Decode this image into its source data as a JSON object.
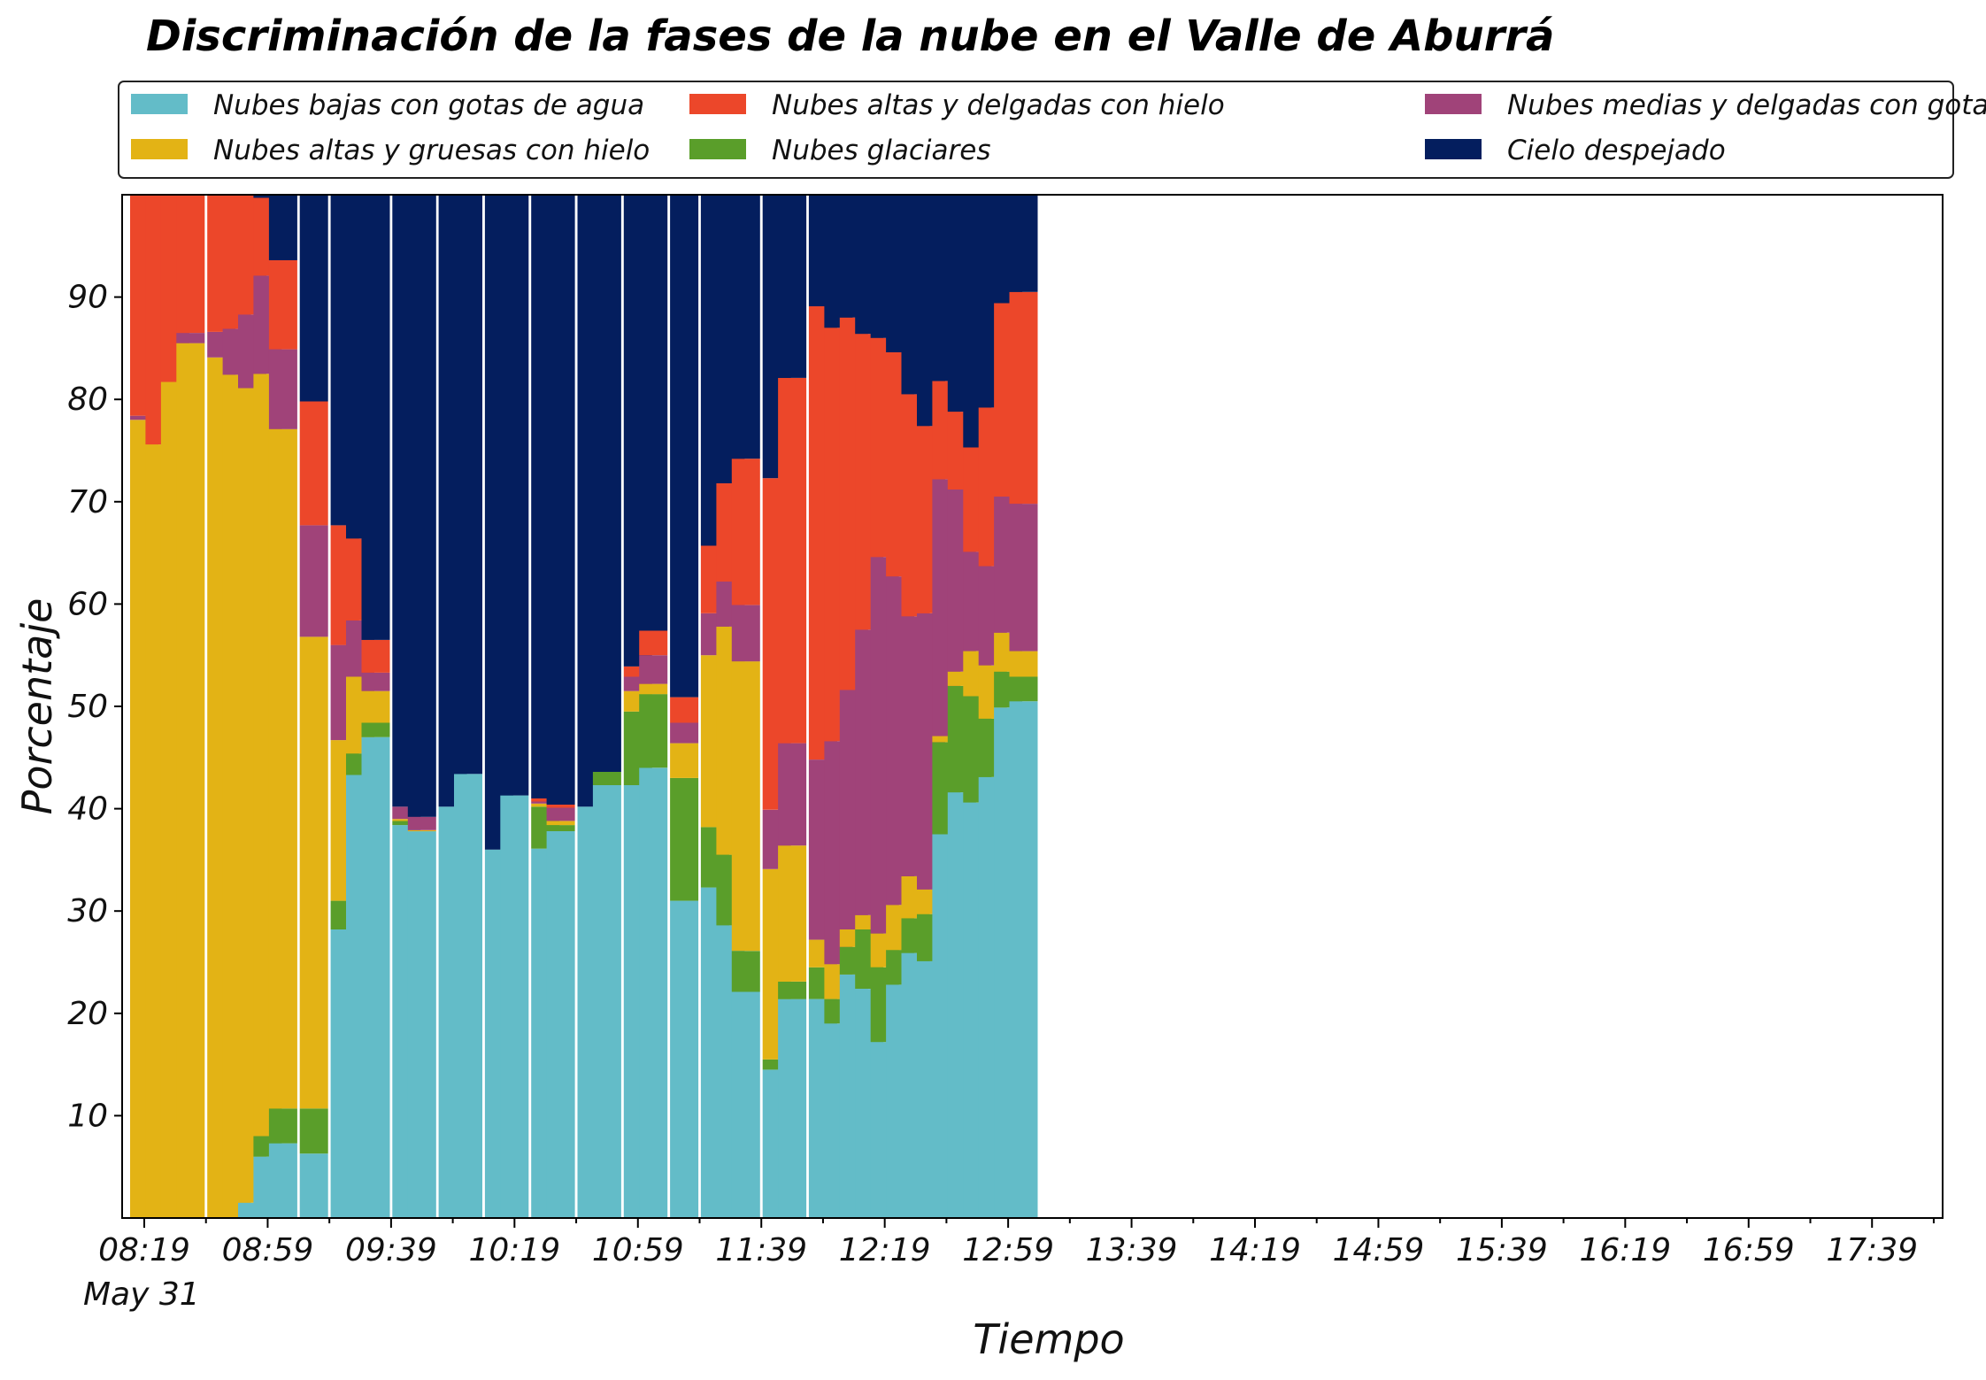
{
  "chart_data": {
    "type": "bar",
    "stacked": true,
    "title": "Discriminación de la fases de la nube en el Valle de Aburrá",
    "xlabel": "Tiempo",
    "ylabel": "Porcentaje",
    "ylim": [
      0,
      100
    ],
    "yticks": [
      10,
      20,
      30,
      40,
      50,
      60,
      70,
      80,
      90
    ],
    "xticks": [
      "08:19",
      "08:59",
      "09:39",
      "10:19",
      "10:59",
      "11:39",
      "12:19",
      "12:59",
      "13:39",
      "14:19",
      "14:59",
      "15:39",
      "16:19",
      "16:59",
      "17:39"
    ],
    "xtick_date": "May 31",
    "grid": false,
    "legend_position": "top",
    "legend_columns": 3,
    "series_order": [
      "Nubes bajas con gotas de agua",
      "Nubes glaciares",
      "Nubes altas y gruesas con hielo",
      "Nubes medias y delgadas con gotas de agua",
      "Nubes altas y delgadas con hielo",
      "Cielo despejado"
    ],
    "colors": [
      "#63bcc8",
      "#5a9e2a",
      "#e3b315",
      "#a04379",
      "#ec472a",
      "#041e5e"
    ],
    "legend_entries": [
      {
        "label": "Nubes bajas con gotas de agua",
        "color": "#63bcc8"
      },
      {
        "label": "Nubes altas y gruesas con hielo",
        "color": "#e3b315"
      },
      {
        "label": "Nubes altas y delgadas con hielo",
        "color": "#ec472a"
      },
      {
        "label": "Nubes glaciares",
        "color": "#5a9e2a"
      },
      {
        "label": "Nubes medias y delgadas con gotas de agua",
        "color": "#a04379"
      },
      {
        "label": "Cielo despejado",
        "color": "#041e5e"
      }
    ],
    "bars": [
      {
        "time": "08:19",
        "values": [
          0,
          0,
          78,
          0.4,
          21.6,
          0
        ]
      },
      {
        "time": "08:24",
        "values": [
          0,
          0,
          75.6,
          0,
          24.4,
          0
        ]
      },
      {
        "time": "08:29",
        "values": [
          0,
          0,
          81.7,
          0,
          18.3,
          0
        ]
      },
      {
        "time": "08:34",
        "values": [
          0,
          0,
          85.5,
          1,
          13.5,
          0
        ]
      },
      {
        "time": "08:44",
        "values": [
          0,
          0,
          84.1,
          2.5,
          13.4,
          0
        ]
      },
      {
        "time": "08:49",
        "values": [
          0,
          0,
          82.4,
          4.5,
          13.1,
          0
        ]
      },
      {
        "time": "08:54",
        "values": [
          1.5,
          0,
          79.6,
          7.2,
          11.7,
          0
        ]
      },
      {
        "time": "08:59",
        "values": [
          6,
          2,
          74.5,
          9.6,
          7.6,
          0.3
        ]
      },
      {
        "time": "09:04",
        "values": [
          7.3,
          3.4,
          66.4,
          7.8,
          8.7,
          6.4
        ]
      },
      {
        "time": "09:14",
        "values": [
          6.3,
          4.4,
          46.1,
          10.9,
          12.1,
          20.2
        ]
      },
      {
        "time": "09:24",
        "values": [
          28.2,
          2.8,
          15.7,
          9.3,
          11.7,
          32.3
        ]
      },
      {
        "time": "09:29",
        "values": [
          43.3,
          2.1,
          7.5,
          5.5,
          8,
          33.6
        ]
      },
      {
        "time": "09:34",
        "values": [
          47,
          1.4,
          3.1,
          1.8,
          3.2,
          43.5
        ]
      },
      {
        "time": "09:44",
        "values": [
          38.4,
          0.4,
          0.2,
          1.2,
          0,
          59.8
        ]
      },
      {
        "time": "09:49",
        "values": [
          37.8,
          0,
          0.1,
          1.3,
          0,
          60.8
        ]
      },
      {
        "time": "09:59",
        "values": [
          40.2,
          0,
          0,
          0,
          0,
          59.8
        ]
      },
      {
        "time": "10:04",
        "values": [
          43.4,
          0,
          0,
          0,
          0,
          56.6
        ]
      },
      {
        "time": "10:14",
        "values": [
          36,
          0,
          0,
          0,
          0,
          64
        ]
      },
      {
        "time": "10:19",
        "values": [
          41.3,
          0,
          0,
          0,
          0,
          58.7
        ]
      },
      {
        "time": "10:29",
        "values": [
          36.1,
          4.1,
          0.3,
          0.2,
          0.3,
          59
        ]
      },
      {
        "time": "10:34",
        "values": [
          37.8,
          0.6,
          0.4,
          1.3,
          0.3,
          59.6
        ]
      },
      {
        "time": "10:44",
        "values": [
          40.2,
          0,
          0,
          0,
          0,
          59.8
        ]
      },
      {
        "time": "10:49",
        "values": [
          42.3,
          1.3,
          0,
          0,
          0,
          56.4
        ]
      },
      {
        "time": "10:59",
        "values": [
          42.3,
          7.2,
          2,
          1.4,
          1,
          46.1
        ]
      },
      {
        "time": "11:04",
        "values": [
          44,
          7.2,
          1,
          2.8,
          2.4,
          42.6
        ]
      },
      {
        "time": "11:14",
        "values": [
          31,
          12,
          3.4,
          2,
          2.5,
          49.1
        ]
      },
      {
        "time": "11:24",
        "values": [
          32.3,
          5.9,
          16.8,
          4.1,
          6.6,
          34.3
        ]
      },
      {
        "time": "11:29",
        "values": [
          28.6,
          6.9,
          22.3,
          4.4,
          9.6,
          28.2
        ]
      },
      {
        "time": "11:34",
        "values": [
          22.1,
          4,
          28.3,
          5.5,
          14.3,
          25.8
        ]
      },
      {
        "time": "11:44",
        "values": [
          14.5,
          1,
          18.6,
          5.8,
          32.4,
          27.7
        ]
      },
      {
        "time": "11:49",
        "values": [
          21.4,
          1.7,
          13.3,
          10,
          35.7,
          17.9
        ]
      },
      {
        "time": "11:59",
        "values": [
          21.4,
          3.1,
          2.7,
          17.6,
          44.3,
          10.9
        ]
      },
      {
        "time": "12:04",
        "values": [
          19,
          2.4,
          3.4,
          21.8,
          40.4,
          13
        ]
      },
      {
        "time": "12:09",
        "values": [
          23.8,
          2.7,
          1.7,
          23.4,
          36.4,
          12
        ]
      },
      {
        "time": "12:14",
        "values": [
          22.4,
          5.8,
          1.4,
          27.9,
          28.9,
          13.6
        ]
      },
      {
        "time": "12:19",
        "values": [
          17.2,
          7.3,
          3.3,
          36.8,
          21.4,
          14
        ]
      },
      {
        "time": "12:24",
        "values": [
          22.8,
          3.4,
          4.4,
          32.1,
          21.9,
          15.4
        ]
      },
      {
        "time": "12:29",
        "values": [
          25.9,
          3.4,
          4.1,
          25.4,
          21.7,
          19.5
        ]
      },
      {
        "time": "12:34",
        "values": [
          25.1,
          4.6,
          2.4,
          27,
          18.3,
          22.6
        ]
      },
      {
        "time": "12:39",
        "values": [
          37.5,
          9,
          0.6,
          25.1,
          9.6,
          18.2
        ]
      },
      {
        "time": "12:44",
        "values": [
          41.6,
          10.4,
          1.4,
          17.8,
          7.6,
          21.2
        ]
      },
      {
        "time": "12:49",
        "values": [
          40.6,
          10.4,
          4.4,
          9.7,
          10.2,
          24.7
        ]
      },
      {
        "time": "12:54",
        "values": [
          43.1,
          5.7,
          5.2,
          9.7,
          15.5,
          20.8
        ]
      },
      {
        "time": "12:59",
        "values": [
          49.9,
          3.5,
          3.8,
          13.3,
          18.9,
          10.6
        ]
      },
      {
        "time": "13:04",
        "values": [
          50.5,
          2.4,
          2.5,
          14.4,
          20.7,
          9.5
        ]
      }
    ]
  }
}
